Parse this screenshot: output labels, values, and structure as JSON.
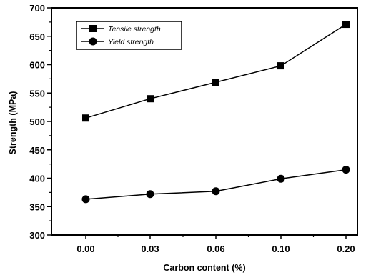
{
  "chart_data": {
    "type": "line",
    "categories": [
      "0.00",
      "0.03",
      "0.06",
      "0.10",
      "0.20"
    ],
    "series": [
      {
        "name": "Tensile strength",
        "marker": "square",
        "values": [
          506,
          540,
          569,
          598,
          671
        ]
      },
      {
        "name": "Yield strength",
        "marker": "circle",
        "values": [
          363,
          372,
          377,
          399,
          415
        ]
      }
    ],
    "xlabel": "Carbon content  (%)",
    "ylabel": "Strength  (MPa)",
    "ylim": [
      300,
      700
    ],
    "yticks": [
      "300",
      "350",
      "400",
      "450",
      "500",
      "550",
      "600",
      "650",
      "700"
    ],
    "legend_position": "top-left",
    "grid": false,
    "colors": {
      "line": "#000000",
      "background": "#ffffff"
    }
  }
}
